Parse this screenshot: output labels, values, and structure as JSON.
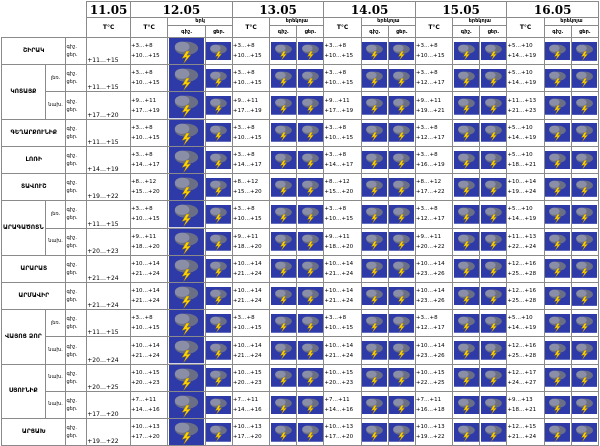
{
  "dates": [
    "11.05",
    "12.05",
    "13.05",
    "14.05",
    "15.05",
    "16.05"
  ],
  "header": {
    "tc": "T°C",
    "day_pl": "երկ\nցեր.",
    "day_pl2": "երեկոյա\nցեր.",
    "sub_ok1": "գիշ.",
    "sub_ok2": "ցեր."
  },
  "day_label_night": "գիշ.",
  "day_label_day": "ցեր.",
  "row_labels": {
    "r1": "ՇԻՐԱԿ",
    "r2": "ԿՈՏԱՅՔ",
    "r2a": "լեռ.",
    "r2b": "նախ.",
    "r3": "ԳԵՂԱՐՔՈՒՆԻՔ",
    "r4": "ԼՈՌԻ",
    "r5": "ՏԱՎՈՒՇ",
    "r6": "ԱՐԱԳԱԾՈՏՆ",
    "r6a": "լեռ.",
    "r6b": "նախ.",
    "r7": "ԱՐԱՐԱՏ",
    "r8": "ԱՐՄԱՎԻՐ",
    "r9": "ՎԱՅՈՑ ՁՈՐ",
    "r9a": "լեռ.",
    "r9b": "նախ.",
    "r10": "ՍՅՈՒՆԻՔ",
    "r10a": "նախ.",
    "r10b": "նախ.",
    "r11": "ԱՐՑԱԽ"
  },
  "d1": {
    "r1": [
      "գիշ.",
      "ցեր.",
      "+11…+15"
    ],
    "r2a": [
      "գիշ.",
      "ցեր.",
      "+11…+15"
    ],
    "r2b": [
      "գիշ.",
      "ցեր.",
      "+17…+20"
    ],
    "r3": [
      "գիշ.",
      "ցեր.",
      "+11…+15"
    ],
    "r4": [
      "գիշ.",
      "ցեր.",
      "+14…+19"
    ],
    "r5": [
      "գիշ.",
      "ցեր.",
      "+19…+22"
    ],
    "r6a": [
      "գիշ.",
      "ցեր.",
      "+11…+15"
    ],
    "r6b": [
      "գիշ.",
      "ցեր.",
      "+20…+23"
    ],
    "r7": [
      "գիշ.",
      "ցեր.",
      "+21…+24"
    ],
    "r8": [
      "գիշ.",
      "ցեր.",
      "+21…+24"
    ],
    "r9a": [
      "գիշ.",
      "ցեր.",
      "+11…+15"
    ],
    "r9b": [
      "գիշ.",
      "ցեր.",
      "+20…+24"
    ],
    "r10a": [
      "գիշ.",
      "ցեր.",
      "+20…+25"
    ],
    "r10b": [
      "գիշ.",
      "ցեր.",
      "+17…+20"
    ],
    "r11": [
      "գիշ.",
      "ցեր.",
      "+19…+22"
    ]
  },
  "temps": {
    "r1": [
      [
        "+3…+8",
        "+10…+15"
      ],
      [
        "+3…+8",
        "+10…+15"
      ],
      [
        "+3…+8",
        "+10…+15"
      ],
      [
        "+3…+8",
        "+10…+15"
      ],
      [
        "+5…+10",
        "+14…+19"
      ]
    ],
    "r2a": [
      [
        "+3…+8",
        "+10…+15"
      ],
      [
        "+3…+8",
        "+10…+15"
      ],
      [
        "+3…+8",
        "+10…+15"
      ],
      [
        "+3…+8",
        "+12…+17"
      ],
      [
        "+5…+10",
        "+14…+19"
      ]
    ],
    "r2b": [
      [
        "+9…+11",
        "+17…+19"
      ],
      [
        "+9…+11",
        "+17…+19"
      ],
      [
        "+9…+11",
        "+17…+19"
      ],
      [
        "+9…+11",
        "+19…+21"
      ],
      [
        "+11…+13",
        "+21…+23"
      ]
    ],
    "r3": [
      [
        "+3…+8",
        "+10…+15"
      ],
      [
        "+3…+8",
        "+10…+15"
      ],
      [
        "+3…+8",
        "+10…+15"
      ],
      [
        "+3…+8",
        "+12…+17"
      ],
      [
        "+5…+10",
        "+14…+19"
      ]
    ],
    "r4": [
      [
        "+3…+8",
        "+14…+17"
      ],
      [
        "+3…+8",
        "+14…+17"
      ],
      [
        "+3…+8",
        "+14…+17"
      ],
      [
        "+3…+8",
        "+16…+19"
      ],
      [
        "+5…+10",
        "+18…+21"
      ]
    ],
    "r5": [
      [
        "+8…+12",
        "+15…+20"
      ],
      [
        "+8…+12",
        "+15…+20"
      ],
      [
        "+8…+12",
        "+15…+20"
      ],
      [
        "+8…+12",
        "+17…+22"
      ],
      [
        "+10…+14",
        "+19…+24"
      ]
    ],
    "r6a": [
      [
        "+3…+8",
        "+10…+15"
      ],
      [
        "+3…+8",
        "+10…+15"
      ],
      [
        "+3…+8",
        "+10…+15"
      ],
      [
        "+3…+8",
        "+12…+17"
      ],
      [
        "+5…+10",
        "+14…+19"
      ]
    ],
    "r6b": [
      [
        "+9…+11",
        "+18…+20"
      ],
      [
        "+9…+11",
        "+18…+20"
      ],
      [
        "+9…+11",
        "+18…+20"
      ],
      [
        "+9…+11",
        "+20…+22"
      ],
      [
        "+11…+13",
        "+22…+24"
      ]
    ],
    "r7": [
      [
        "+10…+14",
        "+21…+24"
      ],
      [
        "+10…+14",
        "+21…+24"
      ],
      [
        "+10…+14",
        "+21…+24"
      ],
      [
        "+10…+14",
        "+23…+26"
      ],
      [
        "+12…+16",
        "+25…+28"
      ]
    ],
    "r8": [
      [
        "+10…+14",
        "+21…+24"
      ],
      [
        "+10…+14",
        "+21…+24"
      ],
      [
        "+10…+14",
        "+21…+24"
      ],
      [
        "+10…+14",
        "+23…+26"
      ],
      [
        "+12…+16",
        "+25…+28"
      ]
    ],
    "r9a": [
      [
        "+3…+8",
        "+10…+15"
      ],
      [
        "+3…+8",
        "+10…+15"
      ],
      [
        "+3…+8",
        "+10…+15"
      ],
      [
        "+3…+8",
        "+12…+17"
      ],
      [
        "+5…+10",
        "+14…+19"
      ]
    ],
    "r9b": [
      [
        "+10…+14",
        "+21…+24"
      ],
      [
        "+10…+14",
        "+21…+24"
      ],
      [
        "+10…+14",
        "+21…+24"
      ],
      [
        "+10…+14",
        "+23…+26"
      ],
      [
        "+12…+16",
        "+25…+28"
      ]
    ],
    "r10a": [
      [
        "+10…+15",
        "+20…+23"
      ],
      [
        "+10…+15",
        "+20…+23"
      ],
      [
        "+10…+15",
        "+20…+23"
      ],
      [
        "+10…+15",
        "+22…+25"
      ],
      [
        "+12…+17",
        "+24…+27"
      ]
    ],
    "r10b": [
      [
        "+7…+11",
        "+14…+16"
      ],
      [
        "+7…+11",
        "+14…+16"
      ],
      [
        "+7…+11",
        "+14…+16"
      ],
      [
        "+7…+11",
        "+16…+18"
      ],
      [
        "+9…+13",
        "+18…+21"
      ]
    ],
    "r11": [
      [
        "+10…+13",
        "+17…+20"
      ],
      [
        "+10…+13",
        "+17…+20"
      ],
      [
        "+10…+13",
        "+17…+20"
      ],
      [
        "+10…+13",
        "+19…+22"
      ],
      [
        "+12…+15",
        "+21…+24"
      ]
    ]
  },
  "icon_names": [
    "thunderstorm-icon",
    "storm-cloud-icon"
  ]
}
